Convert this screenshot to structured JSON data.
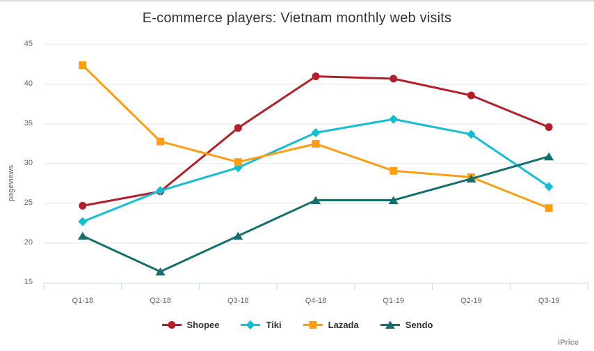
{
  "chart_data": {
    "type": "line",
    "title": "E-commerce players: Vietnam monthly web visits",
    "xlabel": "",
    "ylabel": "pageviews",
    "credit": "iPrice",
    "categories": [
      "Q1-18",
      "Q2-18",
      "Q3-18",
      "Q4-18",
      "Q1-19",
      "Q2-19",
      "Q3-19"
    ],
    "series": [
      {
        "name": "Shopee",
        "color": "#b2212b",
        "marker": "circle",
        "values": [
          24.7,
          26.5,
          34.5,
          41.0,
          40.7,
          38.6,
          34.6
        ]
      },
      {
        "name": "Tiki",
        "color": "#15bdd3",
        "marker": "diamond",
        "values": [
          22.7,
          26.6,
          29.5,
          33.9,
          35.6,
          33.7,
          27.1
        ]
      },
      {
        "name": "Lazada",
        "color": "#fe9c12",
        "marker": "square",
        "values": [
          42.4,
          32.8,
          30.2,
          32.5,
          29.1,
          28.3,
          24.4
        ]
      },
      {
        "name": "Sendo",
        "color": "#156f6e",
        "marker": "triangle",
        "values": [
          20.9,
          16.4,
          20.9,
          25.4,
          25.4,
          28.1,
          30.9
        ]
      }
    ],
    "ylim": [
      15,
      45
    ],
    "yticks": [
      15,
      20,
      25,
      30,
      35,
      40,
      45
    ],
    "grid": true,
    "legend_position": "bottom",
    "colors": {
      "grid": "#e6e6e6",
      "axis_line": "#ccd6eb",
      "tick_label": "#666666",
      "title": "#333333",
      "legend_text": "#333333",
      "credit": "#999999",
      "top_border": "#d9d9d9"
    }
  }
}
